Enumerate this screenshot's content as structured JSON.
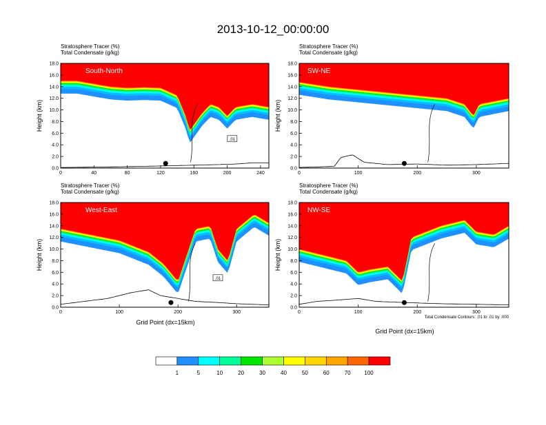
{
  "page_title": "2013-10-12_00:00:00",
  "footnote": "Total Condensate Contours: .01 to .01 by .000",
  "colors": {
    "band": [
      "#ffffff",
      "#1e90ff",
      "#00bfff",
      "#00ffff",
      "#00ff7f",
      "#00e600",
      "#adff2f",
      "#ffff00",
      "#ffd700",
      "#ffa500",
      "#ff6600",
      "#ff0000"
    ],
    "contour": "#000000",
    "terrain": "#000000"
  },
  "colorbar": {
    "labels": [
      "1",
      "5",
      "10",
      "20",
      "30",
      "40",
      "50",
      "60",
      "70",
      "100"
    ],
    "colors": [
      "#ffffff",
      "#1e90ff",
      "#00ffff",
      "#00ff99",
      "#00e600",
      "#adff2f",
      "#ffff00",
      "#ffd700",
      "#ffa500",
      "#ff6600",
      "#ff0000"
    ]
  },
  "chart_data": [
    {
      "type": "heatmap",
      "id": "south-north",
      "label": "South-North",
      "subtitle_line1": "Stratosphere Tracer   (%)",
      "subtitle_line2": "Total Condensate   (g/kg)",
      "ylabel": "Height (km)",
      "xlabel": "",
      "xlim": [
        0,
        250
      ],
      "ylim": [
        0,
        18
      ],
      "xticks": [
        0,
        40,
        80,
        120,
        160,
        200,
        240
      ],
      "yticks": [
        "0.0",
        "2.0",
        "4.0",
        "6.0",
        "8.0",
        "10.0",
        "12.0",
        "14.0",
        "16.0",
        "18.0"
      ],
      "contour_label": ".01",
      "storm_marker_x": 126,
      "tropopause_km": [
        [
          0,
          15.0
        ],
        [
          20,
          15.0
        ],
        [
          40,
          14.5
        ],
        [
          60,
          14.0
        ],
        [
          80,
          13.8
        ],
        [
          100,
          13.9
        ],
        [
          120,
          13.8
        ],
        [
          140,
          12.5
        ],
        [
          150,
          9.0
        ],
        [
          155,
          6.5
        ],
        [
          160,
          7.5
        ],
        [
          170,
          9.5
        ],
        [
          180,
          11.0
        ],
        [
          190,
          10.5
        ],
        [
          200,
          9.0
        ],
        [
          210,
          10.5
        ],
        [
          230,
          11.0
        ],
        [
          250,
          10.5
        ]
      ],
      "terrain_km": [
        [
          0,
          0.1
        ],
        [
          60,
          0.2
        ],
        [
          100,
          0.3
        ],
        [
          130,
          0.4
        ],
        [
          160,
          0.5
        ],
        [
          190,
          0.6
        ],
        [
          210,
          0.7
        ],
        [
          230,
          0.9
        ],
        [
          250,
          0.9
        ]
      ]
    },
    {
      "type": "heatmap",
      "id": "sw-ne",
      "label": "SW-NE",
      "subtitle_line1": "Stratosphere Tracer   (%)",
      "subtitle_line2": "Total Condensate   (g/kg)",
      "ylabel": "Height (km)",
      "xlabel": "",
      "xlim": [
        0,
        355
      ],
      "ylim": [
        0,
        18
      ],
      "xticks": [
        0,
        100,
        200,
        300
      ],
      "yticks": [
        "0.0",
        "2.0",
        "4.0",
        "6.0",
        "8.0",
        "10.0",
        "12.0",
        "14.0",
        "16.0",
        "18.0"
      ],
      "contour_label": "",
      "storm_marker_x": 178,
      "tropopause_km": [
        [
          0,
          14.8
        ],
        [
          50,
          14.0
        ],
        [
          100,
          13.5
        ],
        [
          150,
          13.0
        ],
        [
          200,
          12.5
        ],
        [
          250,
          12.0
        ],
        [
          280,
          11.0
        ],
        [
          295,
          9.0
        ],
        [
          305,
          11.0
        ],
        [
          330,
          11.5
        ],
        [
          355,
          12.0
        ]
      ],
      "terrain_km": [
        [
          0,
          0.1
        ],
        [
          60,
          0.3
        ],
        [
          70,
          1.8
        ],
        [
          90,
          2.3
        ],
        [
          110,
          1.0
        ],
        [
          150,
          0.6
        ],
        [
          200,
          0.7
        ],
        [
          250,
          0.5
        ],
        [
          300,
          0.6
        ],
        [
          355,
          0.8
        ]
      ]
    },
    {
      "type": "heatmap",
      "id": "west-east",
      "label": "West-East",
      "subtitle_line1": "Stratosphere Tracer   (%)",
      "subtitle_line2": "Total Condensate   (g/kg)",
      "ylabel": "Height (km)",
      "xlabel": "Grid Point (dx=15km)",
      "xlim": [
        0,
        355
      ],
      "ylim": [
        0,
        18
      ],
      "xticks": [
        0,
        100,
        200,
        300
      ],
      "yticks": [
        "0.0",
        "2.0",
        "4.0",
        "6.0",
        "8.0",
        "10.0",
        "12.0",
        "14.0",
        "16.0",
        "18.0"
      ],
      "contour_label": ".01",
      "storm_marker_x": 188,
      "tropopause_km": [
        [
          0,
          13.5
        ],
        [
          50,
          12.5
        ],
        [
          100,
          11.5
        ],
        [
          150,
          9.5
        ],
        [
          175,
          7.5
        ],
        [
          200,
          4.5
        ],
        [
          230,
          13.5
        ],
        [
          255,
          14.0
        ],
        [
          268,
          10.0
        ],
        [
          285,
          8.0
        ],
        [
          300,
          13.5
        ],
        [
          330,
          16.0
        ],
        [
          355,
          14.5
        ]
      ],
      "terrain_km": [
        [
          0,
          0.5
        ],
        [
          40,
          1.0
        ],
        [
          80,
          1.5
        ],
        [
          120,
          2.5
        ],
        [
          150,
          3.0
        ],
        [
          170,
          2.0
        ],
        [
          200,
          1.5
        ],
        [
          230,
          1.0
        ],
        [
          270,
          0.8
        ],
        [
          300,
          0.6
        ],
        [
          355,
          0.4
        ]
      ]
    },
    {
      "type": "heatmap",
      "id": "nw-se",
      "label": "NW-SE",
      "subtitle_line1": "Stratosphere Tracer   (%)",
      "subtitle_line2": "Total Condensate   (g/kg)",
      "ylabel": "Height (km)",
      "xlabel": "Grid Point (dx=15km)",
      "xlim": [
        0,
        355
      ],
      "ylim": [
        0,
        18
      ],
      "xticks": [
        0,
        100,
        200,
        300
      ],
      "yticks": [
        "0.0",
        "2.0",
        "4.0",
        "6.0",
        "8.0",
        "10.0",
        "12.0",
        "14.0",
        "16.0",
        "18.0"
      ],
      "contour_label": "",
      "storm_marker_x": 178,
      "tropopause_km": [
        [
          0,
          10.0
        ],
        [
          40,
          9.0
        ],
        [
          80,
          8.0
        ],
        [
          100,
          6.0
        ],
        [
          120,
          6.5
        ],
        [
          150,
          7.0
        ],
        [
          175,
          4.5
        ],
        [
          190,
          12.0
        ],
        [
          240,
          14.0
        ],
        [
          280,
          15.0
        ],
        [
          300,
          13.0
        ],
        [
          330,
          12.5
        ],
        [
          355,
          14.0
        ]
      ],
      "terrain_km": [
        [
          0,
          0.5
        ],
        [
          30,
          1.0
        ],
        [
          60,
          1.2
        ],
        [
          100,
          1.5
        ],
        [
          130,
          1.0
        ],
        [
          180,
          0.8
        ],
        [
          240,
          0.6
        ],
        [
          300,
          0.5
        ],
        [
          355,
          0.4
        ]
      ]
    }
  ]
}
